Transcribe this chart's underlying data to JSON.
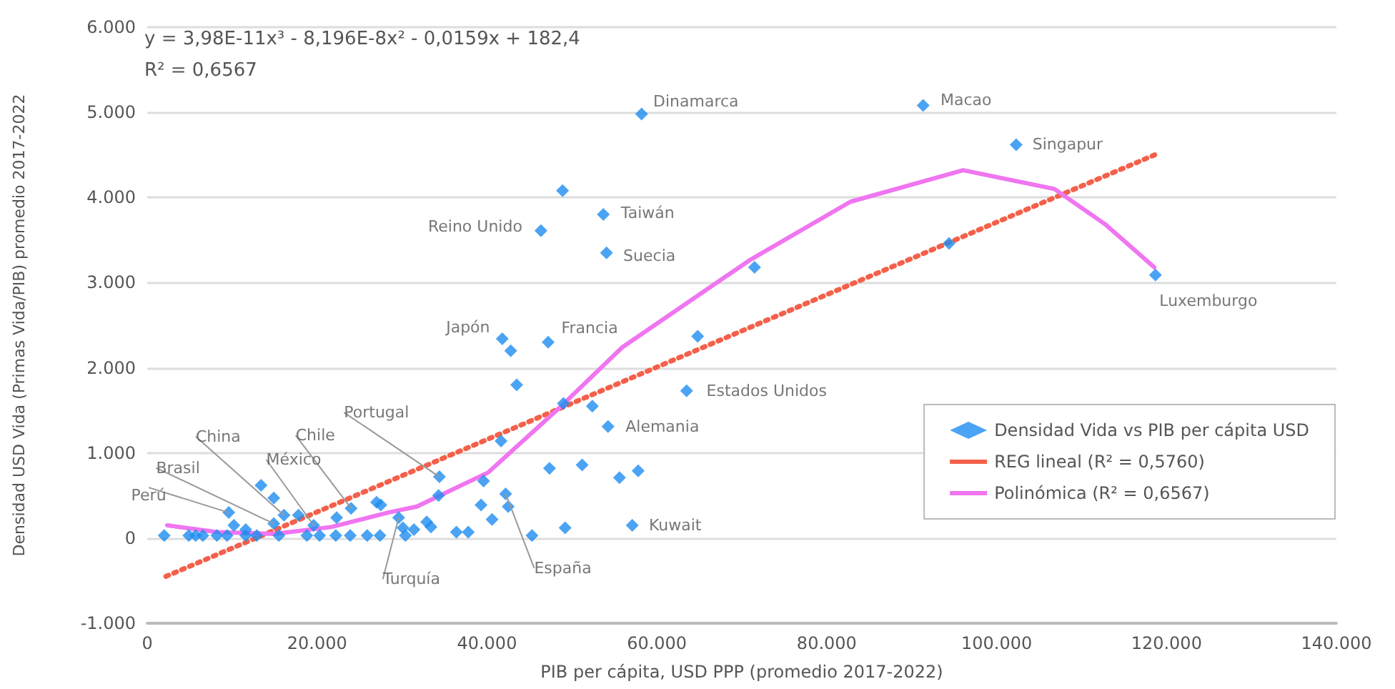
{
  "chart_data": {
    "type": "scatter",
    "xlabel": "PIB per cápita, USD PPP (promedio 2017-2022)",
    "ylabel": "Densidad USD Vida (Primas Vida/PIB) promedio 2017-2022",
    "xlim": [
      0,
      140000
    ],
    "xticks": [
      {
        "value": 0,
        "label": "0"
      },
      {
        "value": 20000,
        "label": "20.000"
      },
      {
        "value": 40000,
        "label": "40.000"
      },
      {
        "value": 60000,
        "label": "60.000"
      },
      {
        "value": 80000,
        "label": "80.000"
      },
      {
        "value": 100000,
        "label": "100.000"
      },
      {
        "value": 120000,
        "label": "120.000"
      },
      {
        "value": 140000,
        "label": "140.000"
      }
    ],
    "ylim": [
      -1000,
      6000
    ],
    "yticks": [
      {
        "value": -1000,
        "label": "-1.000"
      },
      {
        "value": 0,
        "label": "0"
      },
      {
        "value": 1000,
        "label": "1.000"
      },
      {
        "value": 2000,
        "label": "2.000"
      },
      {
        "value": 3000,
        "label": "3.000"
      },
      {
        "value": 4000,
        "label": "4.000"
      },
      {
        "value": 5000,
        "label": "5.000"
      },
      {
        "value": 6000,
        "label": "6.000"
      }
    ],
    "grid": "y",
    "legend": "bottom right",
    "series": [
      {
        "name": "Densidad Vida vs PIB per cápita USD",
        "color": "#1e8cf0",
        "marker": "diamond",
        "x": [
          58200,
          91350,
          102300,
          118700,
          48900,
          53700,
          46350,
          54070,
          41800,
          42800,
          47200,
          43500,
          64800,
          71500,
          94400,
          63500,
          54250,
          52400,
          49000,
          41650,
          47360,
          51200,
          55600,
          57800,
          57100,
          49200,
          45300,
          39600,
          34400,
          34300,
          42200,
          42500,
          39300,
          40600,
          36400,
          37800,
          29600,
          30100,
          30400,
          31400,
          32900,
          33400,
          27000,
          27500,
          24000,
          22300,
          25900,
          27400,
          22200,
          23900,
          20300,
          18800,
          19600,
          17800,
          16100,
          14900,
          15500,
          13400,
          14900,
          9600,
          10200,
          2000,
          4900,
          5700,
          6550,
          8200,
          9400,
          11600,
          12900,
          11600
        ],
        "values": [
          4980,
          5080,
          4620,
          3090,
          4080,
          3800,
          3610,
          3350,
          2340,
          2200,
          2300,
          1800,
          2370,
          3180,
          3460,
          1730,
          1310,
          1550,
          1580,
          1140,
          820,
          860,
          710,
          790,
          150,
          120,
          30,
          670,
          720,
          500,
          520,
          370,
          390,
          220,
          70,
          70,
          240,
          120,
          30,
          100,
          190,
          130,
          420,
          390,
          350,
          240,
          30,
          30,
          30,
          30,
          30,
          30,
          150,
          270,
          270,
          170,
          30,
          620,
          470,
          300,
          150,
          30,
          30,
          30,
          30,
          30,
          30,
          30,
          30,
          100
        ]
      },
      {
        "name": "REG lineal (R² = 0,5760)",
        "type": "line",
        "color": "#f4604a",
        "marker": "none",
        "line_style": "dotted",
        "x": [
          2200,
          118600
        ],
        "values": [
          -450,
          4500
        ]
      },
      {
        "name": "Polinómica (R² = 0,6567)",
        "type": "line",
        "color": "#f075f0",
        "marker": "none",
        "line_style": "solid",
        "x": [
          2350,
          8230,
          14950,
          21660,
          28380,
          31740,
          40130,
          48530,
          55920,
          70870,
          82790,
          96060,
          106800,
          112850,
          118560
        ],
        "values": [
          150,
          70,
          50,
          130,
          300,
          370,
          770,
          1530,
          2240,
          3260,
          3950,
          4320,
          4100,
          3680,
          3180
        ]
      }
    ],
    "annotations": [
      "y = 3,98E-11x³ - 8,196E-8x² - 0,0159x + 182,4",
      "R² = 0,6567",
      {
        "text": "Dinamarca",
        "x": 58200,
        "y": 4980
      },
      {
        "text": "Macao",
        "x": 91350,
        "y": 5080
      },
      {
        "text": "Singapur",
        "x": 102300,
        "y": 4620
      },
      {
        "text": "Luxemburgo",
        "x": 118700,
        "y": 3090
      },
      {
        "text": "Taiwán",
        "x": 53700,
        "y": 3800
      },
      {
        "text": "Reino Unido",
        "x": 46350,
        "y": 3610
      },
      {
        "text": "Suecia",
        "x": 54070,
        "y": 3350
      },
      {
        "text": "Japón",
        "x": 41800,
        "y": 2340
      },
      {
        "text": "Francia",
        "x": 47200,
        "y": 2300
      },
      {
        "text": "Estados Unidos",
        "x": 63500,
        "y": 1730
      },
      {
        "text": "Alemania",
        "x": 54250,
        "y": 1310
      },
      {
        "text": "Kuwait",
        "x": 57100,
        "y": 150
      },
      {
        "text": "Perú",
        "x": 9600,
        "y": 300
      },
      {
        "text": "Brasil",
        "x": 14900,
        "y": 170
      },
      {
        "text": "China",
        "x": 16100,
        "y": 270
      },
      {
        "text": "México",
        "x": 19600,
        "y": 150
      },
      {
        "text": "Chile",
        "x": 24000,
        "y": 350
      },
      {
        "text": "Portugal",
        "x": 34400,
        "y": 720
      },
      {
        "text": "Turquía",
        "x": 29600,
        "y": 240
      },
      {
        "text": "España",
        "x": 42200,
        "y": 520
      }
    ]
  }
}
